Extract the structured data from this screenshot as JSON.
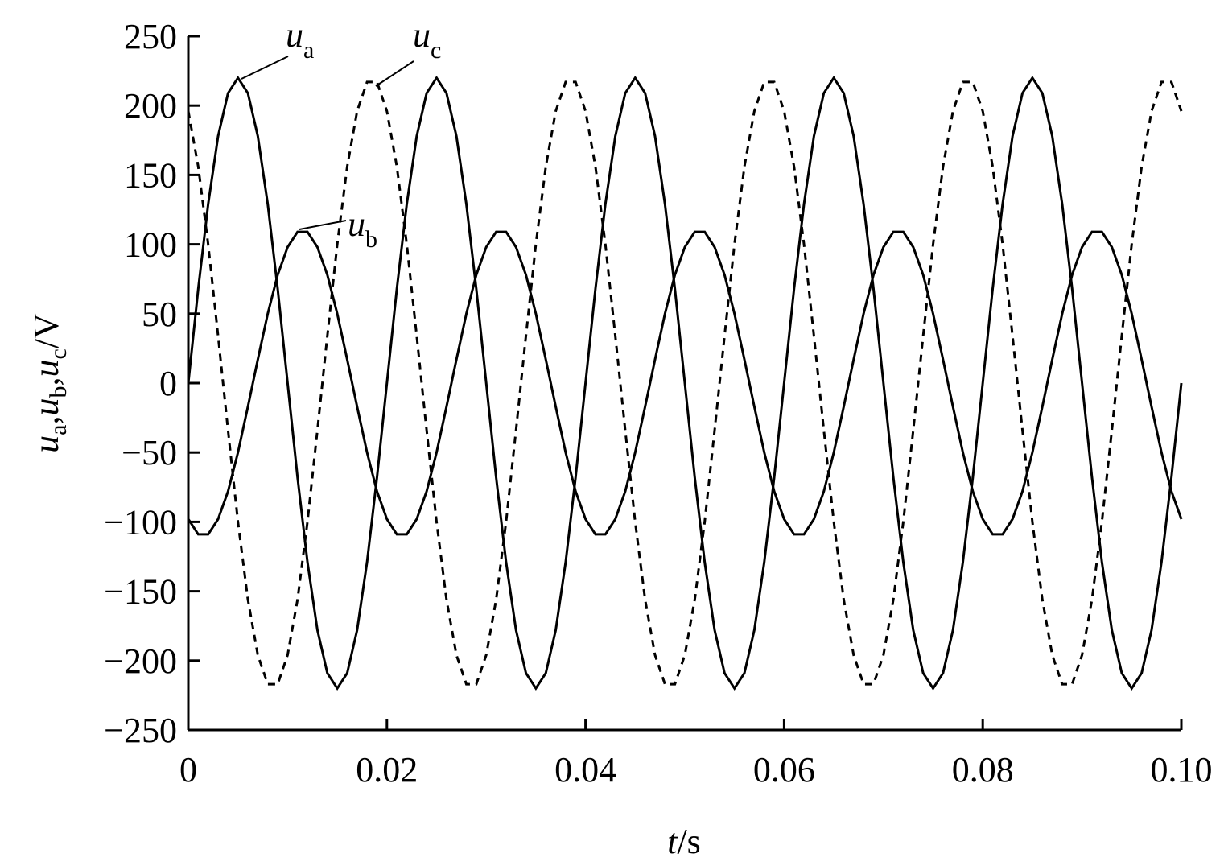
{
  "chart_data": {
    "type": "line",
    "xlabel": [
      {
        "text": "t",
        "style": "italic"
      },
      {
        "text": "/s",
        "style": "normal"
      }
    ],
    "ylabel": [
      {
        "text": "u",
        "style": "italic"
      },
      {
        "text": "a",
        "style": "sub"
      },
      {
        "text": ",",
        "style": "normal"
      },
      {
        "text": "u",
        "style": "italic"
      },
      {
        "text": "b",
        "style": "sub"
      },
      {
        "text": ",",
        "style": "normal"
      },
      {
        "text": "u",
        "style": "italic"
      },
      {
        "text": "c",
        "style": "sub"
      },
      {
        "text": "/V",
        "style": "normal"
      }
    ],
    "xlim": [
      0,
      0.1
    ],
    "xticks": [
      0,
      0.02,
      0.04,
      0.06,
      0.08,
      {
        "value": 0.1,
        "label": "0.10"
      }
    ],
    "ylim": [
      -250,
      250
    ],
    "yticks": [
      {
        "value": -250,
        "label": "−250"
      },
      {
        "value": -200,
        "label": "−200"
      },
      {
        "value": -150,
        "label": "−150"
      },
      {
        "value": -100,
        "label": "−100"
      },
      {
        "value": -50,
        "label": "−50"
      },
      0,
      50,
      100,
      150,
      200,
      250
    ],
    "x": [
      0,
      0.001,
      0.002,
      0.003,
      0.004,
      0.005,
      0.006,
      0.007,
      0.008,
      0.009,
      0.01,
      0.011,
      0.012,
      0.013,
      0.014,
      0.015,
      0.016,
      0.017,
      0.018,
      0.019,
      0.02,
      0.021,
      0.022,
      0.023,
      0.024,
      0.025,
      0.026,
      0.027,
      0.028,
      0.029,
      0.03,
      0.031,
      0.032,
      0.033,
      0.034,
      0.035,
      0.036,
      0.037,
      0.038,
      0.039,
      0.04,
      0.041,
      0.042,
      0.043,
      0.044,
      0.045,
      0.046,
      0.047,
      0.048,
      0.049,
      0.05,
      0.051,
      0.052,
      0.053,
      0.054,
      0.055,
      0.056,
      0.057,
      0.058,
      0.059,
      0.06,
      0.061,
      0.062,
      0.063,
      0.064,
      0.065,
      0.066,
      0.067,
      0.068,
      0.069,
      0.07,
      0.071,
      0.072,
      0.073,
      0.074,
      0.075,
      0.076,
      0.077,
      0.078,
      0.079,
      0.08,
      0.081,
      0.082,
      0.083,
      0.084,
      0.085,
      0.086,
      0.087,
      0.088,
      0.089,
      0.09,
      0.091,
      0.092,
      0.093,
      0.094,
      0.095,
      0.096,
      0.097,
      0.098,
      0.099,
      0.1
    ],
    "series": [
      {
        "name": "u",
        "subscript": "a",
        "color": "#000000",
        "dashed": false,
        "values": [
          0,
          68,
          129,
          178,
          209,
          220,
          209,
          178,
          129,
          68,
          0,
          -68,
          -129,
          -178,
          -209,
          -220,
          -209,
          -178,
          -129,
          -68,
          0,
          68,
          129,
          178,
          209,
          220,
          209,
          178,
          129,
          68,
          0,
          -68,
          -129,
          -178,
          -209,
          -220,
          -209,
          -178,
          -129,
          -68,
          0,
          68,
          129,
          178,
          209,
          220,
          209,
          178,
          129,
          68,
          0,
          -68,
          -129,
          -178,
          -209,
          -220,
          -209,
          -178,
          -129,
          -68,
          0,
          68,
          129,
          178,
          209,
          220,
          209,
          178,
          129,
          68,
          0,
          -68,
          -129,
          -178,
          -209,
          -220,
          -209,
          -178,
          -129,
          -68,
          0,
          68,
          129,
          178,
          209,
          220,
          209,
          178,
          129,
          68,
          0,
          -68,
          -129,
          -178,
          -209,
          -220,
          -209,
          -178,
          -129,
          -68,
          0
        ]
      },
      {
        "name": "u",
        "subscript": "b",
        "color": "#000000",
        "dashed": false,
        "values": [
          -98,
          -109,
          -109,
          -98,
          -78,
          -50,
          -17,
          17,
          50,
          78,
          98,
          109,
          109,
          98,
          78,
          50,
          17,
          -17,
          -50,
          -78,
          -98,
          -109,
          -109,
          -98,
          -78,
          -50,
          -17,
          17,
          50,
          78,
          98,
          109,
          109,
          98,
          78,
          50,
          17,
          -17,
          -50,
          -78,
          -98,
          -109,
          -109,
          -98,
          -78,
          -50,
          -17,
          17,
          50,
          78,
          98,
          109,
          109,
          98,
          78,
          50,
          17,
          -17,
          -50,
          -78,
          -98,
          -109,
          -109,
          -98,
          -78,
          -50,
          -17,
          17,
          50,
          78,
          98,
          109,
          109,
          98,
          78,
          50,
          17,
          -17,
          -50,
          -78,
          -98,
          -109,
          -109,
          -98,
          -78,
          -50,
          -17,
          17,
          50,
          78,
          98,
          109,
          109,
          98,
          78,
          50,
          17,
          -17,
          -50,
          -78,
          -98
        ]
      },
      {
        "name": "u",
        "subscript": "c",
        "color": "#000000",
        "dashed": true,
        "values": [
          196,
          156,
          100,
          34,
          -34,
          -100,
          -156,
          -196,
          -217,
          -217,
          -196,
          -156,
          -100,
          -34,
          34,
          100,
          156,
          196,
          217,
          217,
          196,
          156,
          100,
          34,
          -34,
          -100,
          -156,
          -196,
          -217,
          -217,
          -196,
          -156,
          -100,
          -34,
          34,
          100,
          156,
          196,
          217,
          217,
          196,
          156,
          100,
          34,
          -34,
          -100,
          -156,
          -196,
          -217,
          -217,
          -196,
          -156,
          -100,
          -34,
          34,
          100,
          156,
          196,
          217,
          217,
          196,
          156,
          100,
          34,
          -34,
          -100,
          -156,
          -196,
          -217,
          -217,
          -196,
          -156,
          -100,
          -34,
          34,
          100,
          156,
          196,
          217,
          217,
          196,
          156,
          100,
          34,
          -34,
          -100,
          -156,
          -196,
          -217,
          -217,
          -196,
          -156,
          -100,
          -34,
          34,
          100,
          156,
          196,
          217,
          217,
          196
        ]
      }
    ]
  }
}
